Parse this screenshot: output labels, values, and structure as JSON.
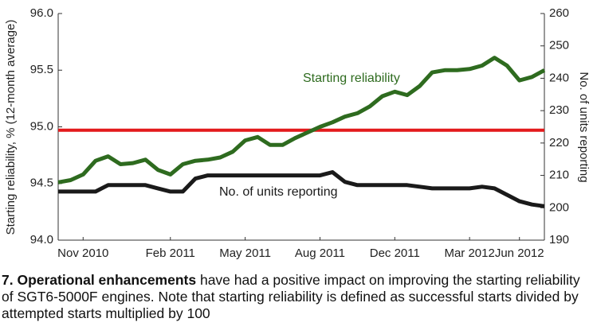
{
  "chart_data": {
    "type": "line",
    "ylabel": "Starting reliability, % (12-month average)",
    "y2label": "No. of units reporting",
    "categories": [
      null,
      null,
      "Nov 2010",
      null,
      null,
      null,
      null,
      null,
      null,
      "Feb 2011",
      null,
      null,
      null,
      null,
      null,
      "May 2011",
      null,
      null,
      null,
      null,
      null,
      "Aug 2011",
      null,
      null,
      null,
      null,
      null,
      "Dec 2011",
      null,
      null,
      null,
      null,
      null,
      "Mar 2012",
      null,
      null,
      null,
      "Jun 2012",
      null,
      null
    ],
    "ylim": [
      94,
      96
    ],
    "yticks": [
      {
        "value": 94,
        "label": "94.0"
      },
      {
        "value": 94.5,
        "label": "94.5"
      },
      {
        "value": 95,
        "label": "95.0"
      },
      {
        "value": 95.5,
        "label": "95.5"
      },
      {
        "value": 96,
        "label": "96.0"
      }
    ],
    "y2lim": [
      190,
      260
    ],
    "y2ticks": [
      190,
      200,
      210,
      220,
      230,
      240,
      250,
      260
    ],
    "reference_line": 94.97,
    "reference_color": "#e31a1c",
    "series": [
      {
        "name": "Starting reliability",
        "color": "#2e6b1f",
        "values": [
          94.51,
          94.53,
          94.58,
          94.7,
          94.74,
          94.67,
          94.68,
          94.71,
          94.62,
          94.58,
          94.67,
          94.7,
          94.71,
          94.73,
          94.78,
          94.88,
          94.91,
          94.84,
          94.84,
          94.9,
          94.95,
          95.0,
          95.04,
          95.09,
          95.12,
          95.18,
          95.27,
          95.31,
          95.28,
          95.36,
          95.48,
          95.5,
          95.5,
          95.51,
          95.54,
          95.61,
          95.54,
          95.41,
          95.44,
          95.5
        ]
      },
      {
        "name": "No. of units reporting",
        "color": "#1a1a1a",
        "axis": "y2",
        "values": [
          205,
          205,
          205,
          205,
          207,
          207,
          207,
          207,
          206,
          205,
          205,
          209,
          210,
          210,
          210,
          210,
          210,
          210,
          210,
          210,
          210,
          210,
          211,
          208,
          207,
          207,
          207,
          207,
          207,
          206.5,
          206,
          206,
          206,
          206,
          206.5,
          206,
          204,
          202,
          201,
          200.5
        ]
      }
    ]
  },
  "caption": {
    "bold": "7. Operational enhancements",
    "text": " have had a positive impact on improving the starting reliability of SGT6-5000F engines. Note that starting reliability is defined as successful starts divided by attempted starts multiplied by 100"
  }
}
